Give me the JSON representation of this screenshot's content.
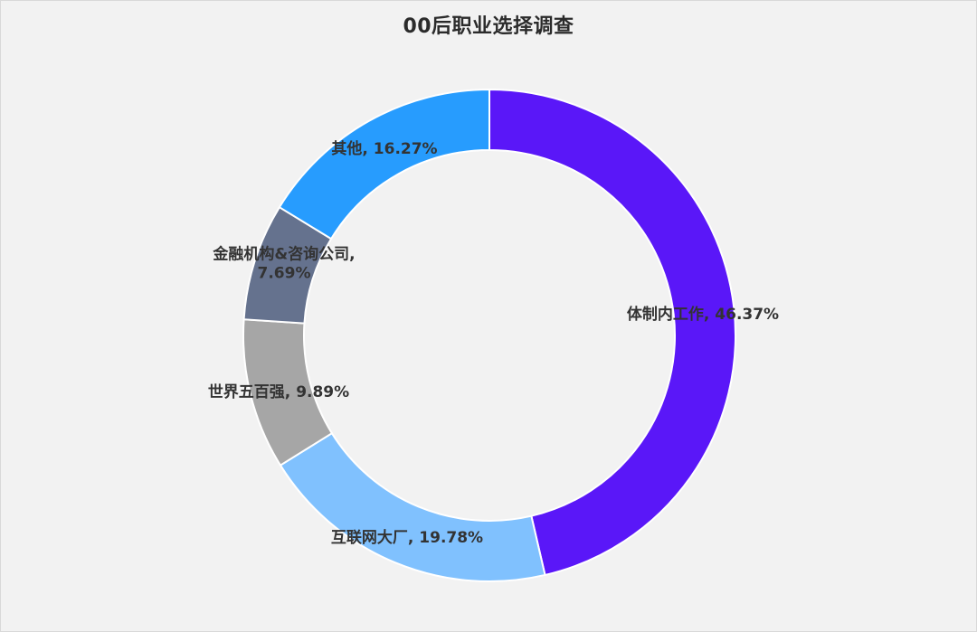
{
  "chart_data": {
    "type": "pie",
    "variant": "donut",
    "title": "00后职业选择调查",
    "legend": "none",
    "slices": [
      {
        "label": "体制内工作",
        "value": 46.37,
        "display": "体制内工作, 46.37%",
        "color": "#5a17f8"
      },
      {
        "label": "互联网大厂",
        "value": 19.78,
        "display": "互联网大厂, 19.78%",
        "color": "#80c1fe"
      },
      {
        "label": "世界五百强",
        "value": 9.89,
        "display": "世界五百强, 9.89%",
        "color": "#a6a6a6"
      },
      {
        "label": "金融机构&咨询公司",
        "value": 7.69,
        "display_lines": [
          "金融机构&咨询公司,",
          "7.69%"
        ],
        "color": "#65728e"
      },
      {
        "label": "其他",
        "value": 16.27,
        "display": "其他, 16.27%",
        "color": "#279cfe"
      }
    ]
  }
}
